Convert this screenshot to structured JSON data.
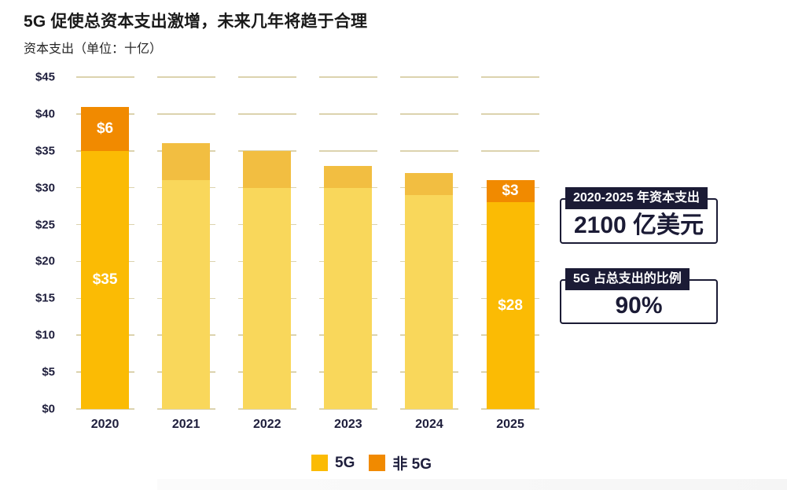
{
  "header": {
    "title": "5G 促使总资本支出激增，未来几年将趋于合理",
    "subtitle": "资本支出（单位：十亿）"
  },
  "chart_data": {
    "type": "bar",
    "stacked": true,
    "title": "5G 促使总资本支出激增，未来几年将趋于合理",
    "ylabel": "资本支出（单位：十亿）",
    "categories": [
      "2020",
      "2021",
      "2022",
      "2023",
      "2024",
      "2025"
    ],
    "series": [
      {
        "name": "5G",
        "values": [
          35,
          31,
          30,
          30,
          29,
          28
        ],
        "value_labels": [
          "$35",
          "",
          "",
          "",
          "",
          "$28"
        ],
        "color_actual": "#FBBB04",
        "color_forecast": "#F9D75B"
      },
      {
        "name": "非 5G",
        "values": [
          6,
          5,
          5,
          3,
          3,
          3
        ],
        "value_labels": [
          "$6",
          "",
          "",
          "",
          "",
          "$3"
        ],
        "color_actual": "#F18A00",
        "color_forecast": "#F2BE41"
      }
    ],
    "totals": [
      41,
      36,
      35,
      33,
      32,
      31
    ],
    "is_actual_highlight": [
      true,
      false,
      false,
      false,
      false,
      true
    ],
    "ylim": [
      0,
      45
    ],
    "ytick_step": 5,
    "ytick_prefix": "$",
    "yticks": [
      "$0",
      "$5",
      "$10",
      "$15",
      "$20",
      "$25",
      "$30",
      "$35",
      "$40",
      "$45"
    ],
    "grid": "dashed-horizontal",
    "gridline_color": "#DCD3AE",
    "legend_position": "bottom"
  },
  "legend": [
    {
      "label": "5G",
      "color": "#FBBB04"
    },
    {
      "label": "非 5G",
      "color": "#F18A00"
    }
  ],
  "callouts": [
    {
      "label": "2020-2025 年资本支出",
      "value": "2100 亿美元"
    },
    {
      "label": "5G 占总支出的比例",
      "value": "90%"
    }
  ],
  "colors": {
    "accent_navy": "#1B1B35",
    "axis_text": "#1E1E3C",
    "yellow_5g": "#FBBB04",
    "orange_non5g": "#F18A00",
    "yellow_5g_forecast": "#F9D75B",
    "orange_non5g_forecast": "#F2BE41"
  }
}
